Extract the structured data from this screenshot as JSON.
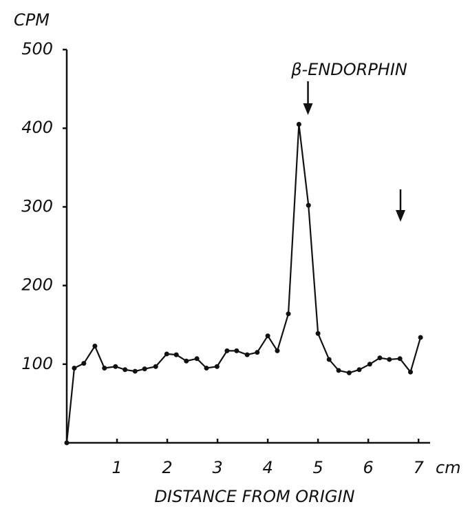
{
  "chart_data": {
    "type": "line",
    "y_label": "CPM",
    "x_label": "DISTANCE FROM ORIGIN",
    "x_unit": "cm",
    "annotation": {
      "text": "β-ENDORPHIN",
      "x": 4.8
    },
    "x": [
      0,
      0.15,
      0.34,
      0.56,
      0.75,
      0.97,
      1.16,
      1.36,
      1.55,
      1.77,
      1.99,
      2.18,
      2.38,
      2.59,
      2.78,
      2.99,
      3.19,
      3.38,
      3.59,
      3.79,
      4.0,
      4.19,
      4.41,
      4.62,
      4.81,
      5.0,
      5.22,
      5.41,
      5.62,
      5.82,
      6.03,
      6.23,
      6.42,
      6.63,
      6.84,
      7.04
    ],
    "series": [
      {
        "name": "CPM",
        "color": "#111111",
        "values": [
          0,
          95,
          101,
          123,
          95,
          97,
          93,
          91,
          94,
          97,
          113,
          112,
          104,
          107,
          95,
          97,
          117,
          117,
          112,
          115,
          136,
          117,
          164,
          405,
          302,
          139,
          106,
          92,
          89,
          93,
          100,
          108,
          106,
          107,
          90,
          134
        ]
      }
    ],
    "xlim": [
      0,
      7.23
    ],
    "ylim": [
      0,
      500
    ],
    "xticks": [
      1,
      2,
      3,
      4,
      5,
      6,
      7
    ],
    "yticks": [
      100,
      200,
      300,
      400,
      500
    ]
  }
}
